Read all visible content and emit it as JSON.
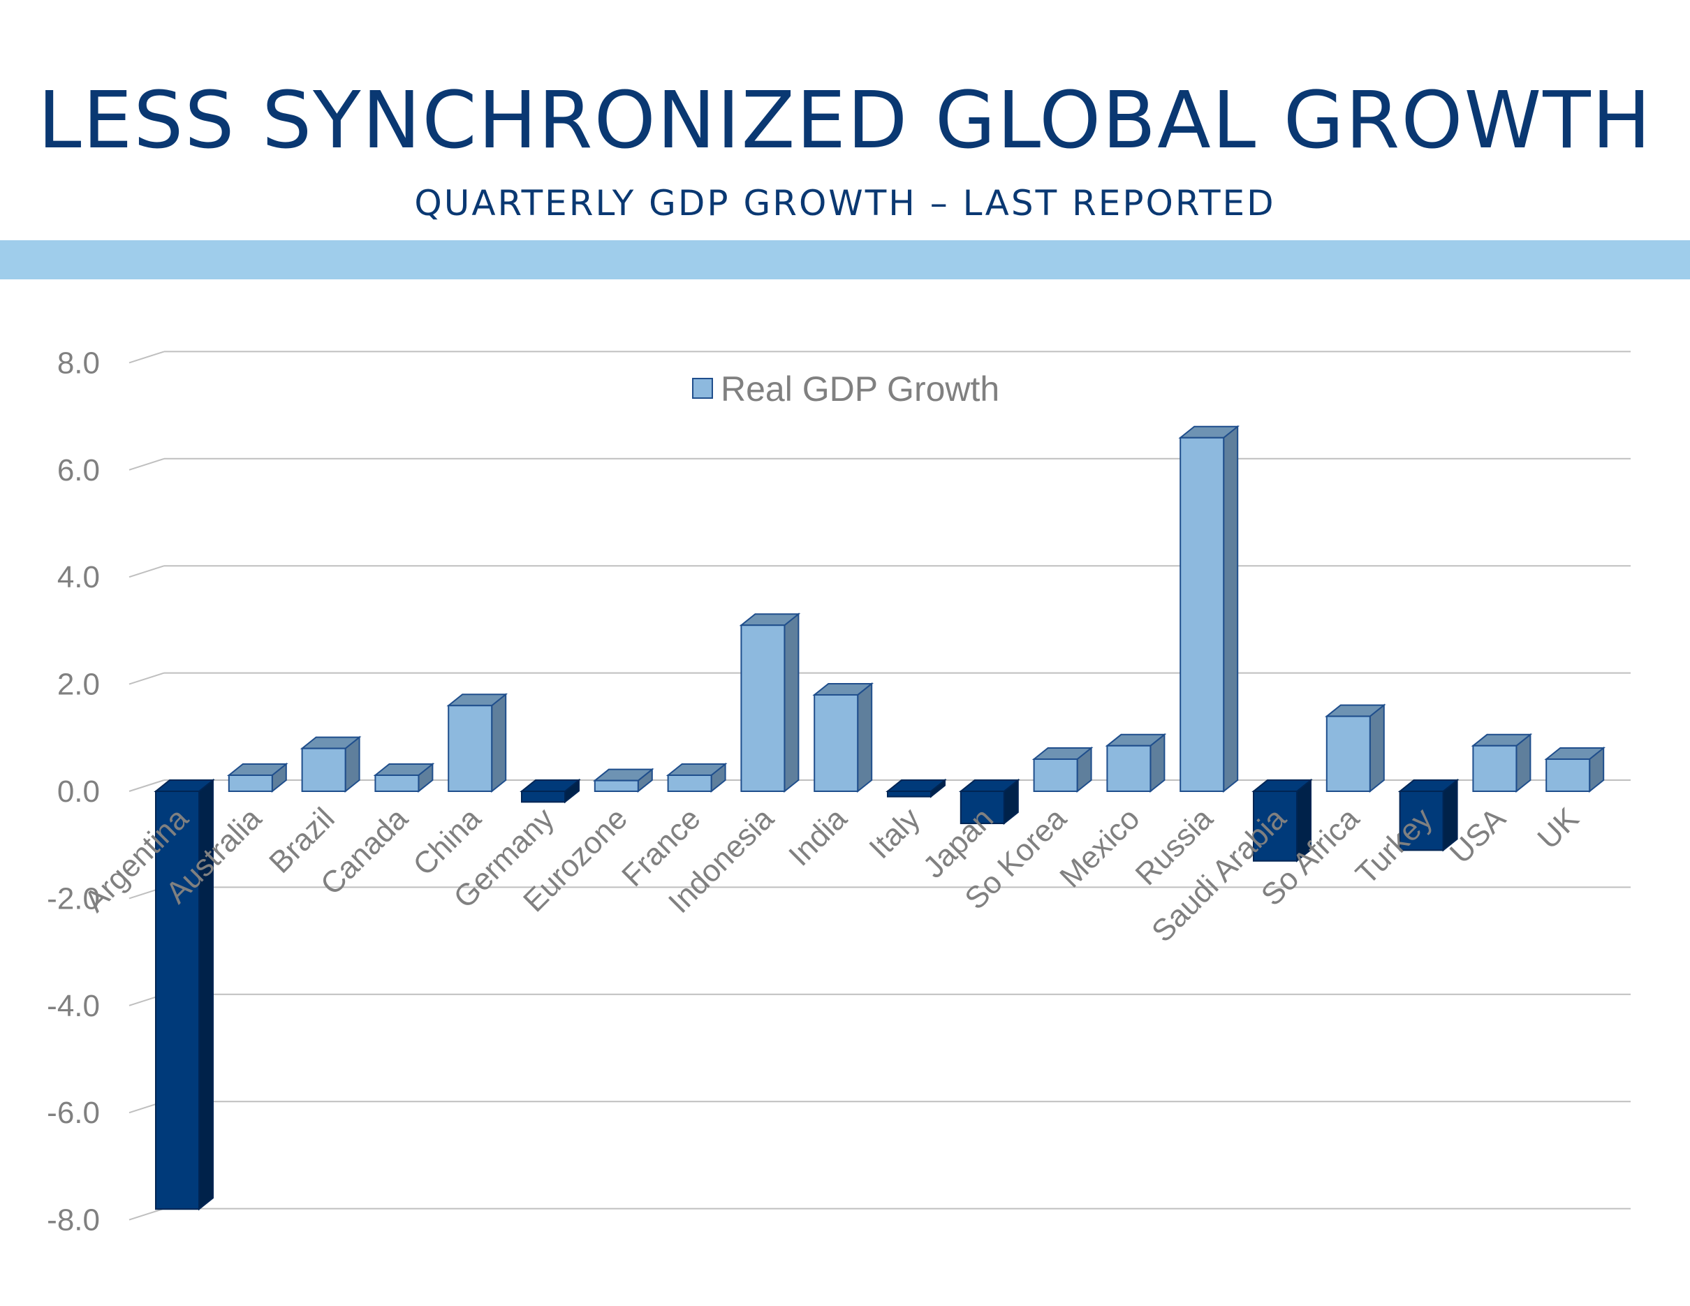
{
  "header": {
    "title": "LESS SYNCHRONIZED GLOBAL GROWTH",
    "subtitle": "QUARTERLY GDP GROWTH – LAST REPORTED"
  },
  "colors": {
    "title": "#0a3872",
    "band": "#9fcdeb",
    "positive_front": "#8db9de",
    "positive_top": "#6e93b3",
    "positive_side": "#5f7f9c",
    "negative_front": "#003a7a",
    "negative_side": "#00224a",
    "grid": "#bfbfbf",
    "axis_text": "#808080"
  },
  "chart_data": {
    "type": "bar",
    "legend": {
      "label": "Real GDP Growth",
      "position": "top-center"
    },
    "categories": [
      "Argentina",
      "Australia",
      "Brazil",
      "Canada",
      "China",
      "Germany",
      "Eurozone",
      "France",
      "Indonesia",
      "India",
      "Italy",
      "Japan",
      "So Korea",
      "Mexico",
      "Russia",
      "Saudi Arabia",
      "So Africa",
      "Turkey",
      "USA",
      "UK"
    ],
    "series": [
      {
        "name": "Real GDP Growth",
        "values": [
          -7.8,
          0.3,
          0.8,
          0.3,
          1.6,
          -0.2,
          0.2,
          0.3,
          3.1,
          1.8,
          -0.1,
          -0.6,
          0.6,
          0.85,
          6.6,
          -1.3,
          1.4,
          -1.1,
          0.85,
          0.6
        ]
      }
    ],
    "ylim": [
      -8,
      8
    ],
    "yticks": [
      8,
      6,
      4,
      2,
      0,
      -2,
      -4,
      -6,
      -8
    ],
    "ytick_labels": [
      "8.0",
      "6.0",
      "4.0",
      "2.0",
      "0.0",
      "-2.0",
      "-4.0",
      "-6.0",
      "-8.0"
    ],
    "grid": true,
    "style": "3d-columns"
  }
}
